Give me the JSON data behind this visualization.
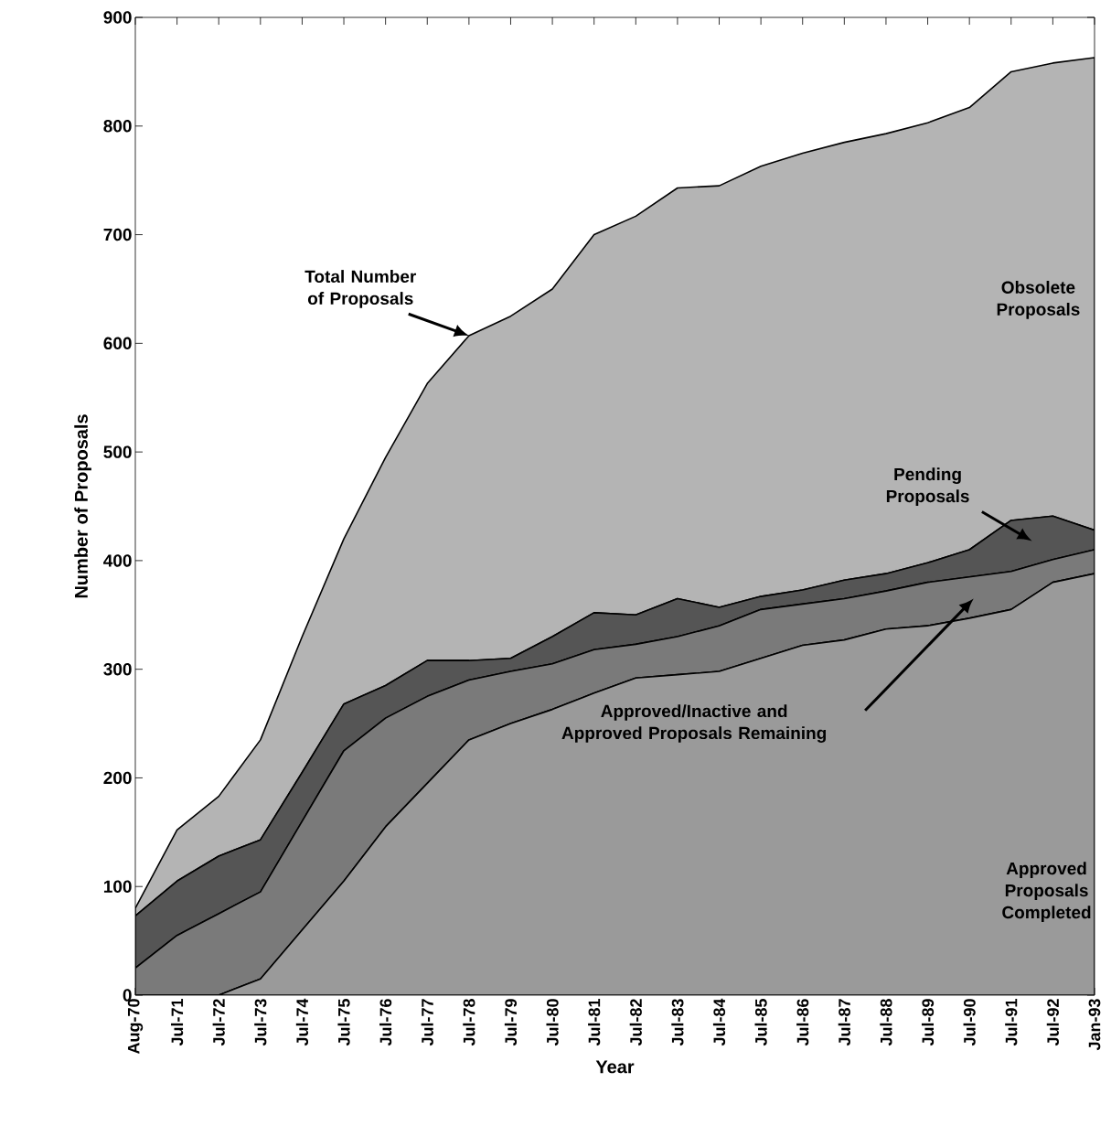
{
  "chart_data": {
    "type": "area",
    "stacked": true,
    "xlabel": "Year",
    "ylabel": "Number of Proposals",
    "categories": [
      "Aug-70",
      "Jul-71",
      "Jul-72",
      "Jul-73",
      "Jul-74",
      "Jul-75",
      "Jul-76",
      "Jul-77",
      "Jul-78",
      "Jul-79",
      "Jul-80",
      "Jul-81",
      "Jul-82",
      "Jul-83",
      "Jul-84",
      "Jul-85",
      "Jul-86",
      "Jul-87",
      "Jul-88",
      "Jul-89",
      "Jul-90",
      "Jul-91",
      "Jul-92",
      "Jan-93"
    ],
    "series": [
      {
        "name": "Approved Proposals Completed",
        "color": "#9a9a9a",
        "values": [
          0,
          0,
          0,
          15,
          60,
          105,
          155,
          195,
          235,
          250,
          263,
          278,
          292,
          295,
          298,
          310,
          322,
          327,
          337,
          340,
          347,
          355,
          380,
          388
        ]
      },
      {
        "name": "Approved/Inactive and Approved Proposals Remaining",
        "color": "#7a7a7a",
        "values": [
          25,
          55,
          75,
          80,
          100,
          120,
          100,
          80,
          55,
          48,
          42,
          40,
          31,
          35,
          42,
          45,
          38,
          38,
          35,
          40,
          38,
          35,
          21,
          22
        ]
      },
      {
        "name": "Pending Proposals",
        "color": "#555555",
        "values": [
          48,
          50,
          53,
          48,
          45,
          43,
          30,
          33,
          18,
          12,
          25,
          34,
          27,
          35,
          17,
          12,
          13,
          17,
          16,
          18,
          25,
          47,
          40,
          18
        ]
      },
      {
        "name": "Obsolete Proposals",
        "color": "#b4b4b4",
        "values": [
          7,
          47,
          55,
          92,
          125,
          152,
          210,
          255,
          299,
          315,
          320,
          348,
          367,
          378,
          388,
          396,
          402,
          403,
          405,
          405,
          407,
          413,
          417,
          435
        ]
      }
    ],
    "annotations": [
      "Total Number of Proposals"
    ],
    "ylim": [
      0,
      900
    ],
    "yticks": [
      0,
      100,
      200,
      300,
      400,
      500,
      600,
      700,
      800,
      900
    ],
    "grid": false
  }
}
